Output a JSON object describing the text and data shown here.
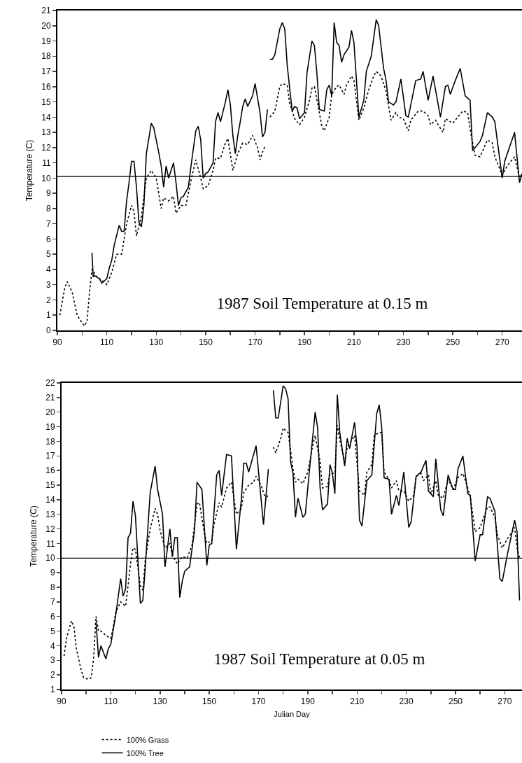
{
  "chart_data": [
    {
      "type": "line",
      "title": "1987 Soil Temperature at 0.15 m",
      "ylabel": "Temperature (C)",
      "xlim": [
        90,
        278
      ],
      "ylim": [
        0,
        21
      ],
      "xticks": [
        90,
        {
          "value": 100,
          "label": null
        },
        110,
        {
          "value": 120,
          "label": null
        },
        130,
        {
          "value": 140,
          "label": null
        },
        150,
        {
          "value": 160,
          "label": null
        },
        170,
        {
          "value": 180,
          "label": null
        },
        190,
        {
          "value": 200,
          "label": null
        },
        210,
        {
          "value": 220,
          "label": null
        },
        230,
        {
          "value": 240,
          "label": null
        },
        250,
        {
          "value": 260,
          "label": null
        },
        270
      ],
      "yticks": [
        0,
        1,
        2,
        3,
        4,
        5,
        6,
        7,
        8,
        9,
        10,
        11,
        12,
        13,
        14,
        15,
        16,
        17,
        18,
        19,
        20,
        21
      ],
      "grid": false,
      "legend": false,
      "marker": "none",
      "ref_lines": [
        {
          "axis": "y",
          "value": 10.1,
          "color": "#000000"
        }
      ],
      "series": [
        {
          "color": "#000000",
          "line_style": "dotted",
          "x": [
            91,
            93,
            94,
            96,
            98,
            100,
            101,
            102,
            103,
            104,
            106,
            108,
            110,
            112,
            114,
            116,
            118,
            120,
            121,
            122,
            124,
            126,
            128,
            130,
            132,
            133,
            135,
            137,
            138,
            140,
            142,
            144,
            146,
            148,
            149,
            151,
            153,
            154,
            156,
            158,
            159,
            161,
            163,
            165,
            167,
            169,
            171,
            172,
            173,
            174,
            175,
            176,
            178,
            180,
            181,
            183,
            184,
            186,
            188,
            190,
            192,
            193,
            194,
            196,
            197,
            198,
            200,
            201,
            203,
            204,
            206,
            207,
            209,
            210,
            212,
            214,
            216,
            218,
            219,
            221,
            223,
            225,
            227,
            228,
            230,
            232,
            233,
            236,
            238,
            240,
            241,
            243,
            246,
            247,
            250,
            252,
            254,
            256,
            257,
            259,
            261,
            264,
            266,
            267,
            270,
            272,
            274,
            275,
            277,
            278
          ],
          "values": [
            1.0,
            2.8,
            3.2,
            2.5,
            1.0,
            0.5,
            0.3,
            0.6,
            2.5,
            4.0,
            3.5,
            3.3,
            3.0,
            3.8,
            5.0,
            5.0,
            7.0,
            8.2,
            7.8,
            6.2,
            7.5,
            10.0,
            10.5,
            10.0,
            8.0,
            8.7,
            8.5,
            8.8,
            7.7,
            8.2,
            8.2,
            9.8,
            11.2,
            10.0,
            9.3,
            9.5,
            10.5,
            11.3,
            11.3,
            12.3,
            12.6,
            10.5,
            11.6,
            12.3,
            12.2,
            12.8,
            12.0,
            11.2,
            11.7,
            12.1,
            null,
            14.0,
            14.4,
            16.0,
            16.2,
            16.1,
            14.9,
            13.9,
            13.5,
            14.0,
            15.1,
            15.9,
            16.0,
            14.3,
            13.4,
            13.1,
            14.0,
            15.5,
            16.0,
            16.1,
            15.5,
            16.1,
            16.7,
            16.4,
            13.8,
            14.6,
            15.8,
            16.7,
            17.0,
            16.7,
            15.7,
            13.8,
            14.3,
            14.0,
            13.9,
            13.1,
            13.8,
            14.4,
            14.4,
            14.1,
            13.5,
            13.8,
            13.0,
            13.9,
            13.6,
            14.0,
            14.4,
            14.3,
            13.2,
            11.5,
            11.4,
            12.5,
            12.3,
            11.4,
            10.2,
            10.8,
            11.2,
            11.4,
            10.0,
            10.3
          ]
        },
        {
          "color": "#000000",
          "line_style": "solid",
          "x": [
            104,
            104.5,
            105,
            106,
            107,
            108,
            110,
            111,
            112,
            113,
            115,
            116,
            117,
            118,
            119,
            120,
            121,
            122,
            123,
            124,
            125,
            126,
            128,
            129,
            131,
            132,
            133,
            134,
            135,
            137,
            138,
            139,
            140,
            141,
            143,
            144,
            146,
            147,
            148,
            149,
            150,
            151,
            152,
            153,
            154,
            155,
            156,
            158,
            159,
            160,
            161,
            162,
            163,
            164,
            165,
            166,
            167,
            169,
            170,
            172,
            173,
            174,
            175,
            175.5,
            176,
            177,
            178,
            180,
            181,
            182,
            183,
            185,
            186,
            187,
            188,
            190,
            191,
            193,
            194,
            195,
            196,
            198,
            199,
            200,
            201,
            202,
            203,
            204,
            205,
            206,
            208,
            209,
            210,
            212,
            214,
            215,
            217,
            219,
            220,
            222,
            223,
            224,
            226,
            227,
            229,
            231,
            232,
            235,
            237,
            238,
            240,
            242,
            245,
            247,
            248,
            249,
            251,
            253,
            255,
            257,
            258,
            261,
            262,
            264,
            266,
            267,
            270,
            271,
            275,
            277,
            278
          ],
          "values": [
            5.1,
            3.5,
            3.6,
            3.5,
            3.4,
            3.1,
            3.4,
            4.1,
            4.6,
            5.6,
            6.9,
            6.5,
            6.5,
            8.5,
            9.7,
            11.1,
            11.1,
            9.4,
            7.1,
            6.8,
            8.2,
            11.6,
            13.6,
            13.3,
            11.7,
            10.8,
            9.4,
            10.8,
            10.0,
            11.0,
            9.7,
            8.2,
            8.7,
            8.8,
            9.4,
            10.7,
            13.1,
            13.4,
            12.5,
            10.0,
            10.3,
            10.4,
            10.7,
            11.0,
            13.7,
            14.3,
            13.7,
            15.0,
            15.8,
            14.8,
            12.8,
            11.6,
            12.8,
            13.7,
            14.7,
            15.2,
            14.7,
            15.4,
            16.2,
            14.3,
            12.7,
            13.0,
            14.5,
            null,
            17.8,
            17.8,
            18.1,
            19.8,
            20.2,
            19.8,
            17.4,
            14.4,
            14.7,
            14.6,
            13.9,
            14.3,
            16.9,
            19.0,
            18.7,
            16.9,
            14.5,
            14.4,
            15.8,
            16.1,
            15.4,
            20.2,
            18.9,
            18.7,
            17.6,
            18.1,
            18.6,
            19.7,
            18.9,
            14.0,
            15.1,
            17.0,
            18.0,
            20.4,
            20.0,
            17.2,
            16.4,
            15.0,
            14.8,
            15.0,
            16.5,
            14.1,
            14.0,
            16.4,
            16.5,
            17.0,
            15.1,
            16.7,
            14.0,
            16.0,
            16.1,
            15.5,
            16.4,
            17.2,
            15.4,
            15.1,
            11.8,
            12.4,
            12.8,
            14.3,
            14.0,
            13.7,
            10.0,
            11.1,
            13.0,
            9.7,
            10.3
          ]
        }
      ]
    },
    {
      "type": "line",
      "title": "1987 Soil Temperature at 0.05 m",
      "xlabel": "Julian Day",
      "ylabel": "Temperature (C)",
      "xlim": [
        90,
        277
      ],
      "ylim": [
        1,
        22
      ],
      "xticks": [
        90,
        {
          "value": 100,
          "label": null
        },
        110,
        {
          "value": 120,
          "label": null
        },
        130,
        {
          "value": 140,
          "label": null
        },
        150,
        {
          "value": 160,
          "label": null
        },
        170,
        {
          "value": 180,
          "label": null
        },
        190,
        {
          "value": 200,
          "label": null
        },
        210,
        {
          "value": 220,
          "label": null
        },
        230,
        {
          "value": 240,
          "label": null
        },
        250,
        {
          "value": 260,
          "label": null
        },
        270
      ],
      "yticks": [
        1,
        2,
        3,
        4,
        5,
        6,
        7,
        8,
        9,
        10,
        11,
        12,
        13,
        14,
        15,
        16,
        17,
        18,
        19,
        20,
        21,
        22
      ],
      "grid": false,
      "legend": "bottom",
      "marker": "none",
      "ref_lines": [
        {
          "axis": "y",
          "value": 10,
          "color": "#000000"
        }
      ],
      "series": [
        {
          "name": "100% Grass",
          "color": "#000000",
          "line_style": "dotted",
          "x": [
            91,
            92,
            94,
            95,
            96,
            98,
            99,
            101,
            102,
            103,
            104,
            105,
            106,
            108,
            110,
            111,
            112,
            114,
            116,
            117,
            118,
            119,
            120,
            122,
            123,
            124,
            126,
            128,
            129,
            130,
            132,
            134,
            135,
            137,
            139,
            141,
            143,
            145,
            146,
            148,
            149,
            151,
            152,
            154,
            155,
            157,
            159,
            161,
            163,
            164,
            166,
            168,
            169,
            171,
            173,
            174,
            175,
            176,
            177,
            179,
            180,
            182,
            183,
            184,
            185,
            186,
            188,
            190,
            192,
            193,
            195,
            196,
            198,
            199,
            201,
            202,
            203,
            205,
            206,
            208,
            209,
            211,
            213,
            214,
            216,
            217,
            219,
            220,
            221,
            223,
            224,
            226,
            227,
            229,
            231,
            233,
            234,
            236,
            237,
            239,
            240,
            242,
            243,
            245,
            247,
            249,
            251,
            253,
            255,
            256,
            258,
            260,
            261,
            263,
            264,
            266,
            267,
            269,
            271,
            273,
            274,
            275,
            276
          ],
          "values": [
            3.3,
            4.5,
            5.7,
            5.3,
            3.8,
            2.3,
            1.8,
            1.7,
            1.8,
            3.1,
            6.0,
            5.0,
            5.0,
            4.7,
            4.5,
            5.3,
            6.3,
            7.0,
            6.7,
            8.1,
            9.6,
            10.7,
            10.6,
            8.1,
            7.8,
            9.9,
            12.0,
            13.4,
            13.0,
            11.9,
            10.7,
            11.0,
            10.2,
            9.6,
            10.1,
            10.0,
            10.9,
            13.7,
            13.8,
            11.7,
            11.0,
            11.2,
            12.4,
            13.8,
            13.5,
            14.8,
            15.2,
            13.0,
            13.4,
            14.5,
            15.0,
            15.2,
            15.6,
            15.0,
            14.0,
            14.4,
            null,
            17.6,
            17.2,
            18.2,
            18.9,
            18.6,
            17.4,
            16.1,
            15.2,
            15.4,
            15.1,
            15.9,
            17.7,
            18.4,
            16.6,
            14.8,
            14.9,
            15.8,
            15.8,
            19.1,
            18.1,
            16.6,
            17.6,
            18.1,
            18.4,
            14.6,
            14.3,
            15.9,
            16.4,
            18.4,
            18.6,
            18.6,
            15.9,
            15.4,
            14.8,
            15.3,
            14.6,
            14.6,
            13.9,
            14.3,
            15.6,
            15.8,
            15.3,
            15.7,
            14.4,
            15.3,
            14.3,
            14.1,
            15.4,
            14.7,
            15.5,
            15.8,
            14.8,
            14.2,
            11.8,
            12.1,
            12.6,
            13.5,
            13.5,
            12.8,
            11.6,
            10.7,
            11.3,
            11.8,
            12.1,
            10.7,
            10.0
          ]
        },
        {
          "name": "100% Tree",
          "color": "#000000",
          "line_style": "solid",
          "x": [
            104,
            105,
            106,
            108,
            109,
            110,
            112,
            114,
            115,
            116,
            117,
            118,
            119,
            120,
            122,
            123,
            124,
            126,
            128,
            129,
            131,
            132,
            134,
            135,
            136,
            137,
            138,
            139,
            140,
            142,
            144,
            145,
            147,
            149,
            150,
            151,
            153,
            154,
            155,
            157,
            159,
            161,
            163,
            164,
            165,
            166,
            169,
            172,
            174,
            175,
            176,
            177,
            178,
            180,
            181,
            182,
            183,
            184,
            185,
            186,
            188,
            189,
            191,
            193,
            194,
            195,
            196,
            198,
            199,
            200,
            201,
            202,
            203,
            205,
            206,
            207,
            209,
            210,
            211,
            212,
            214,
            216,
            218,
            219,
            220,
            221,
            223,
            224,
            226,
            227,
            229,
            231,
            232,
            234,
            236,
            238,
            239,
            241,
            242,
            244,
            245,
            247,
            249,
            250,
            251,
            253,
            255,
            256,
            258,
            260,
            261,
            263,
            264,
            266,
            268,
            269,
            271,
            274,
            275,
            276
          ],
          "values": [
            5.6,
            3.2,
            4.0,
            3.1,
            3.8,
            4.1,
            6.1,
            8.6,
            7.4,
            7.9,
            11.4,
            11.7,
            13.9,
            12.9,
            6.9,
            7.1,
            9.4,
            14.5,
            16.3,
            14.7,
            13.0,
            9.4,
            12.0,
            10.1,
            11.4,
            11.4,
            7.3,
            8.4,
            9.1,
            9.4,
            11.9,
            15.2,
            14.7,
            9.5,
            10.9,
            11.0,
            15.7,
            16.0,
            14.3,
            17.1,
            17.0,
            10.6,
            14.0,
            16.5,
            16.5,
            15.9,
            17.7,
            12.3,
            16.1,
            null,
            21.5,
            19.6,
            19.6,
            21.8,
            21.6,
            20.9,
            16.6,
            15.8,
            12.8,
            14.1,
            12.8,
            13.0,
            16.6,
            20.0,
            18.9,
            14.8,
            13.3,
            13.7,
            16.4,
            15.8,
            14.4,
            21.2,
            18.6,
            16.3,
            18.2,
            17.5,
            19.3,
            17.6,
            12.6,
            12.2,
            15.3,
            15.7,
            19.9,
            20.5,
            19.0,
            15.5,
            15.4,
            13.0,
            14.3,
            13.6,
            15.9,
            12.1,
            12.5,
            15.6,
            15.9,
            16.7,
            14.6,
            14.2,
            16.8,
            13.3,
            12.9,
            15.7,
            14.7,
            14.7,
            16.1,
            17.0,
            14.4,
            14.3,
            9.8,
            11.6,
            11.6,
            14.2,
            14.1,
            13.2,
            8.6,
            8.4,
            10.2,
            12.6,
            11.8,
            7.1
          ]
        }
      ]
    }
  ]
}
